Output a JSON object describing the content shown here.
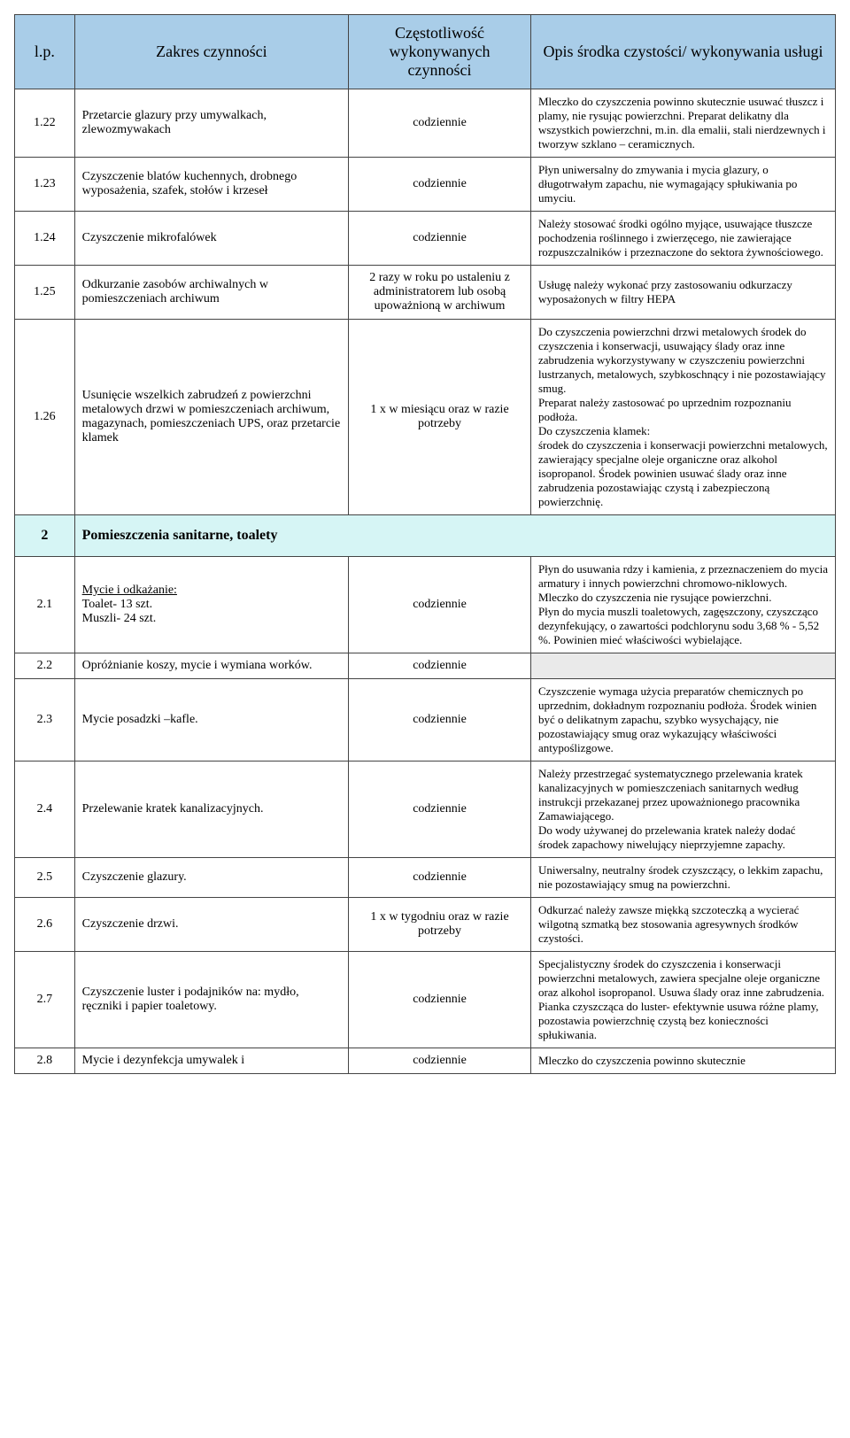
{
  "colors": {
    "header_bg": "#a9cde8",
    "section_bg": "#d6f5f5",
    "border": "#444444",
    "text": "#000000",
    "empty_bg": "#eaeaea"
  },
  "header": {
    "lp": "l.p.",
    "scope": "Zakres czynności",
    "freq": "Częstotliwość wykonywanych czynności",
    "desc": "Opis środka czystości/ wykonywania usługi"
  },
  "rows": [
    {
      "lp": "1.22",
      "scope": "Przetarcie glazury przy umywalkach, zlewozmywakach",
      "freq": "codziennie",
      "desc": "Mleczko do czyszczenia powinno skutecznie usuwać tłuszcz i plamy, nie rysując powierzchni. Preparat delikatny dla wszystkich powierzchni, m.in. dla emalii, stali nierdzewnych i tworzyw szklano – ceramicznych."
    },
    {
      "lp": "1.23",
      "scope": "Czyszczenie blatów kuchennych, drobnego wyposażenia, szafek, stołów i krzeseł",
      "freq": "codziennie",
      "desc": "Płyn uniwersalny do zmywania i mycia glazury, o długotrwałym zapachu, nie wymagający spłukiwania po umyciu."
    },
    {
      "lp": "1.24",
      "scope": "Czyszczenie mikrofalówek",
      "freq": "codziennie",
      "desc": "Należy stosować środki ogólno myjące, usuwające tłuszcze pochodzenia roślinnego i zwierzęcego, nie zawierające rozpuszczalników i przeznaczone do sektora żywnościowego."
    },
    {
      "lp": "1.25",
      "scope": "Odkurzanie zasobów archiwalnych w pomieszczeniach archiwum",
      "freq": "2 razy w roku po ustaleniu z administratorem lub osobą upoważnioną w archiwum",
      "desc": "Usługę należy wykonać przy zastosowaniu odkurzaczy wyposażonych w filtry HEPA"
    },
    {
      "lp": "1.26",
      "scope": "Usunięcie wszelkich zabrudzeń z powierzchni metalowych drzwi w pomieszczeniach archiwum, magazynach, pomieszczeniach UPS,  oraz przetarcie klamek",
      "freq": "1 x w miesiącu oraz w razie potrzeby",
      "desc": "Do czyszczenia powierzchni drzwi metalowych środek do czyszczenia i konserwacji, usuwający ślady oraz inne zabrudzenia wykorzystywany w czyszczeniu powierzchni lustrzanych, metalowych, szybkoschnący i nie pozostawiający smug.\nPreparat należy zastosować po uprzednim rozpoznaniu podłoża.\nDo czyszczenia klamek:\nśrodek do czyszczenia i konserwacji powierzchni metalowych, zawierający specjalne oleje organiczne oraz alkohol isopropanol. Środek powinien usuwać ślady oraz inne zabrudzenia pozostawiając czystą i zabezpieczoną powierzchnię."
    }
  ],
  "section2": {
    "lp": "2",
    "title": "Pomieszczenia sanitarne, toalety"
  },
  "rows2": [
    {
      "lp": "2.1",
      "scope_underline": "Mycie i odkażanie:",
      "scope_rest": "Toalet-  13 szt.\nMuszli-  24 szt.",
      "freq": "codziennie",
      "desc": "Płyn do usuwania rdzy i kamienia, z przeznaczeniem do mycia armatury i innych powierzchni chromowo-niklowych.\nMleczko do czyszczenia nie rysujące powierzchni.\nPłyn do mycia muszli toaletowych, zagęszczony, czyszcząco dezynfekujący, o zawartości podchlorynu sodu 3,68 % - 5,52 %. Powinien mieć właściwości wybielające."
    },
    {
      "lp": "2.2",
      "scope": "Opróżnianie koszy, mycie i wymiana worków.",
      "freq": "codziennie",
      "desc": "",
      "empty_gray": true
    },
    {
      "lp": "2.3",
      "scope": "Mycie posadzki –kafle.",
      "freq": "codziennie",
      "desc": "Czyszczenie wymaga użycia preparatów chemicznych po uprzednim, dokładnym rozpoznaniu podłoża. Środek winien być o delikatnym zapachu, szybko wysychający, nie pozostawiający smug oraz wykazujący właściwości antypoślizgowe."
    },
    {
      "lp": "2.4",
      "scope": "Przelewanie kratek kanalizacyjnych.",
      "freq": "codziennie",
      "desc": "Należy przestrzegać systematycznego przelewania kratek kanalizacyjnych w pomieszczeniach sanitarnych  według instrukcji przekazanej przez  upoważnionego pracownika Zamawiającego.\nDo wody używanej do przelewania kratek należy dodać środek zapachowy niwelujący nieprzyjemne zapachy."
    },
    {
      "lp": "2.5",
      "scope": "Czyszczenie glazury.",
      "freq": "codziennie",
      "desc": "Uniwersalny, neutralny środek czyszczący, o lekkim zapachu, nie pozostawiający smug na powierzchni."
    },
    {
      "lp": "2.6",
      "scope": "Czyszczenie drzwi.",
      "freq": "1 x w tygodniu oraz  w razie potrzeby",
      "desc": "Odkurzać należy zawsze miękką szczoteczką a wycierać wilgotną szmatką bez stosowania agresywnych środków czystości."
    },
    {
      "lp": "2.7",
      "scope": "Czyszczenie luster i podajników na: mydło, ręczniki i papier toaletowy.",
      "freq": "codziennie",
      "desc": "Specjalistyczny środek do czyszczenia i konserwacji powierzchni metalowych, zawiera specjalne oleje organiczne oraz alkohol isopropanol. Usuwa ślady oraz inne zabrudzenia.\nPianka czyszcząca do luster- efektywnie usuwa różne plamy, pozostawia powierzchnię czystą bez konieczności spłukiwania."
    },
    {
      "lp": "2.8",
      "scope": "Mycie i dezynfekcja umywalek i",
      "freq": "codziennie",
      "desc": "Mleczko do czyszczenia powinno skutecznie"
    }
  ]
}
